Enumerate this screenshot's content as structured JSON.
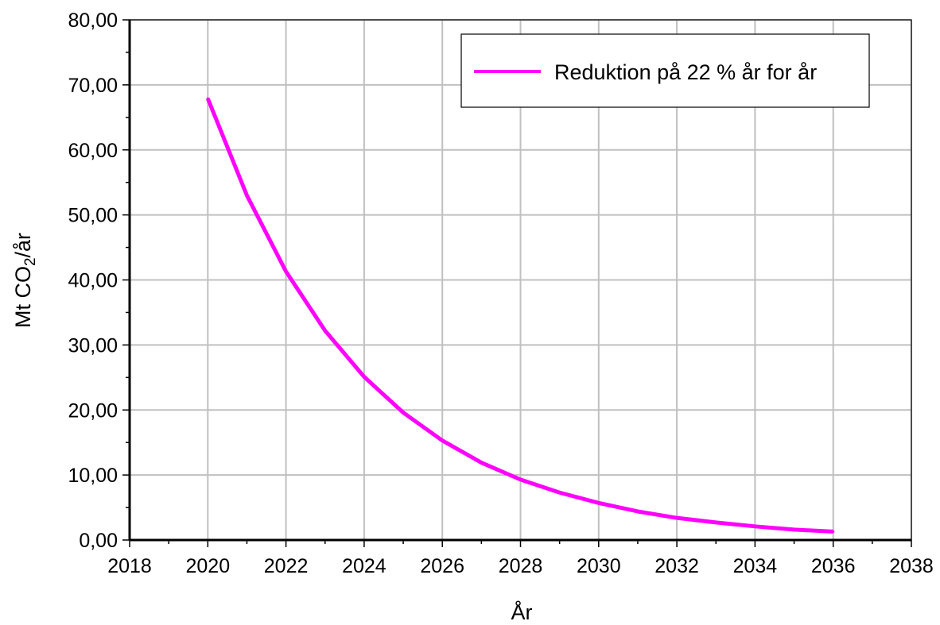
{
  "chart_data": {
    "type": "line",
    "xlabel": "År",
    "ylabel_main": "Mt CO",
    "ylabel_sub": "2",
    "ylabel_tail": "/år",
    "xlim": [
      2018,
      2038
    ],
    "ylim": [
      0,
      80
    ],
    "x_ticks": [
      2018,
      2020,
      2022,
      2024,
      2026,
      2028,
      2030,
      2032,
      2034,
      2036,
      2038
    ],
    "x_tick_labels": [
      "2018",
      "2020",
      "2022",
      "2024",
      "2026",
      "2028",
      "2030",
      "2032",
      "2034",
      "2036",
      "2038"
    ],
    "y_ticks": [
      0,
      10,
      20,
      30,
      40,
      50,
      60,
      70,
      80
    ],
    "y_tick_labels": [
      "0,00",
      "10,00",
      "20,00",
      "30,00",
      "40,00",
      "50,00",
      "60,00",
      "70,00",
      "80,00"
    ],
    "grid": true,
    "legend_position": "top-right",
    "series": [
      {
        "name": "Reduktion på 22 % år for år",
        "color": "#ff00ff",
        "x": [
          2020,
          2021,
          2022,
          2023,
          2024,
          2025,
          2026,
          2027,
          2028,
          2029,
          2030,
          2031,
          2032,
          2033,
          2034,
          2035,
          2036
        ],
        "y": [
          67.9,
          53.0,
          41.3,
          32.2,
          25.1,
          19.6,
          15.3,
          11.9,
          9.3,
          7.3,
          5.7,
          4.4,
          3.4,
          2.7,
          2.1,
          1.6,
          1.3
        ]
      }
    ]
  }
}
